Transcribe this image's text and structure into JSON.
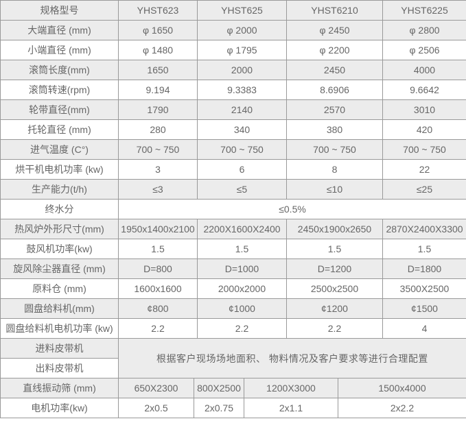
{
  "table": {
    "header": {
      "label": "规格型号",
      "models": [
        "YHST623",
        "YHST625",
        "YHST6210",
        "YHST6225"
      ]
    },
    "rows": [
      {
        "label": "大端直径 (mm)",
        "values": [
          "φ 1650",
          "φ 2000",
          "φ 2450",
          "φ 2800"
        ]
      },
      {
        "label": "小端直径 (mm)",
        "values": [
          "φ 1480",
          "φ 1795",
          "φ 2200",
          "φ 2506"
        ]
      },
      {
        "label": "滚筒长度(mm)",
        "values": [
          "1650",
          "2000",
          "2450",
          "4000"
        ]
      },
      {
        "label": "滚筒转速(rpm)",
        "values": [
          "9.194",
          "9.3383",
          "8.6906",
          "9.6642"
        ]
      },
      {
        "label": "轮带直径(mm)",
        "values": [
          "1790",
          "2140",
          "2570",
          "3010"
        ]
      },
      {
        "label": "托轮直径 (mm)",
        "values": [
          "280",
          "340",
          "380",
          "420"
        ]
      },
      {
        "label": "进气温度 (C°)",
        "values": [
          "700 ~ 750",
          "700 ~ 750",
          "700 ~ 750",
          "700 ~ 750"
        ]
      },
      {
        "label": "烘干机电机功率 (kw)",
        "values": [
          "3",
          "6",
          "8",
          "22"
        ]
      },
      {
        "label": "生产能力(t/h)",
        "values": [
          "≤3",
          "≤5",
          "≤10",
          "≤25"
        ]
      },
      {
        "label": "终水分",
        "merged": "≤0.5%"
      },
      {
        "label": "热风炉外形尺寸(mm)",
        "values": [
          "1950x1400x2100",
          "2200X1600X2400",
          "2450x1900x2650",
          "2870X2400X3300"
        ]
      },
      {
        "label": "鼓风机功率(kw)",
        "values": [
          "1.5",
          "1.5",
          "1.5",
          "1.5"
        ]
      },
      {
        "label": "旋风除尘器直径 (mm)",
        "values": [
          "D=800",
          "D=1000",
          "D=1200",
          "D=1800"
        ]
      },
      {
        "label": "原料仓 (mm)",
        "values": [
          "1600x1600",
          "2000x2000",
          "2500x2500",
          "3500X2500"
        ]
      },
      {
        "label": "圆盘给料机(mm)",
        "values": [
          "¢800",
          "¢1000",
          "¢1200",
          "¢1500"
        ]
      },
      {
        "label": "圆盘给料机电机功率 (kw)",
        "values": [
          "2.2",
          "2.2",
          "2.2",
          "4"
        ]
      },
      {
        "label": "进料皮带机",
        "note_start": true
      },
      {
        "label": "出料皮带机",
        "note_continue": true
      }
    ],
    "belt_note": "根据客户现场场地面积、 物料情况及客户要求等进行合理配置",
    "bottom_rows": [
      {
        "label": "直线振动筛 (mm)",
        "values": [
          "650X2300",
          "800X2500",
          "1200X3000",
          "1500x4000"
        ]
      },
      {
        "label": "电机功率(kw)",
        "values": [
          "2x0.5",
          "2x0.75",
          "2x1.1",
          "2x2.2"
        ]
      }
    ],
    "colors": {
      "shaded_row_bg": "#ececec",
      "plain_row_bg": "#ffffff",
      "border": "#999999",
      "text": "#666666"
    }
  }
}
